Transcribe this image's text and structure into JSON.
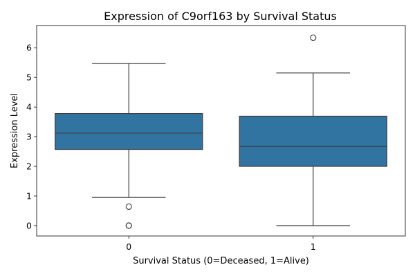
{
  "chart_data": {
    "type": "box",
    "title": "Expression of C9orf163 by Survival Status",
    "xlabel": "Survival Status (0=Deceased, 1=Alive)",
    "ylabel": "Expression Level",
    "categories": [
      "0",
      "1"
    ],
    "ylim": [
      -0.35,
      6.75
    ],
    "yticks": [
      0,
      1,
      2,
      3,
      4,
      5,
      6
    ],
    "grid": false,
    "box_color": "#3274A1",
    "line_color": "#3F3F3F",
    "boxes": [
      {
        "category": "0",
        "whisker_low": 0.95,
        "q1": 2.57,
        "median": 3.12,
        "q3": 3.78,
        "whisker_high": 5.47,
        "outliers": [
          0.64,
          0.0,
          0.0,
          0.0
        ]
      },
      {
        "category": "1",
        "whisker_low": 0.0,
        "q1": 2.0,
        "median": 2.67,
        "q3": 3.69,
        "whisker_high": 5.15,
        "outliers": [
          6.34
        ]
      }
    ]
  }
}
